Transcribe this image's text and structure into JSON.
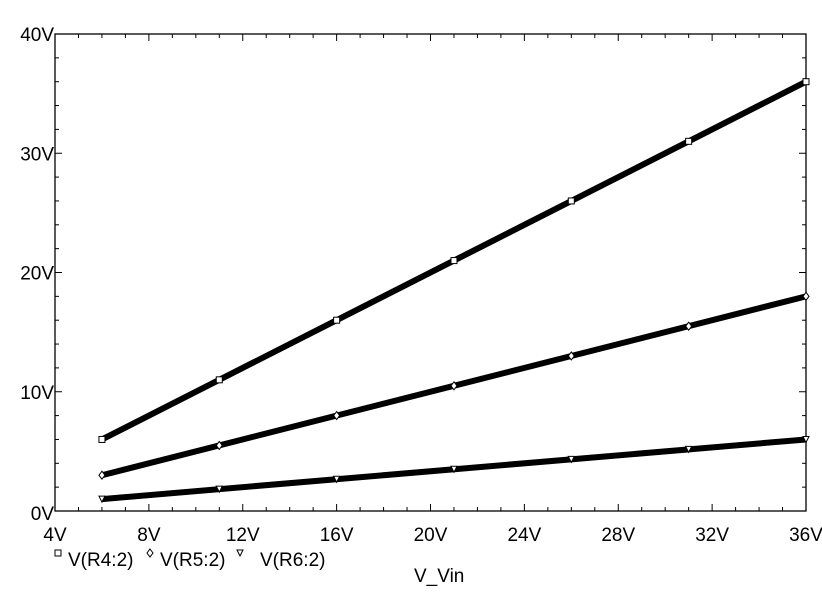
{
  "chart_data": {
    "type": "line",
    "title": "",
    "xlabel": "V_Vin",
    "ylabel": "",
    "xlim": [
      4,
      36
    ],
    "ylim": [
      0,
      40
    ],
    "x_ticks": [
      "4V",
      "8V",
      "12V",
      "16V",
      "20V",
      "24V",
      "28V",
      "32V",
      "36V"
    ],
    "x_tick_values": [
      4,
      8,
      12,
      16,
      20,
      24,
      28,
      32,
      36
    ],
    "y_ticks": [
      "0V",
      "10V",
      "20V",
      "30V",
      "40V"
    ],
    "y_tick_values": [
      0,
      10,
      20,
      30,
      40
    ],
    "grid": false,
    "legend_placement": "bottom-left",
    "series": [
      {
        "name": "V(R4:2)",
        "marker": "square",
        "x": [
          6,
          36
        ],
        "values": [
          6,
          36
        ]
      },
      {
        "name": "V(R5:2)",
        "marker": "diamond",
        "x": [
          6,
          36
        ],
        "values": [
          3,
          18
        ]
      },
      {
        "name": "V(R6:2)",
        "marker": "triangle",
        "x": [
          6,
          36
        ],
        "values": [
          1,
          6
        ]
      }
    ]
  }
}
